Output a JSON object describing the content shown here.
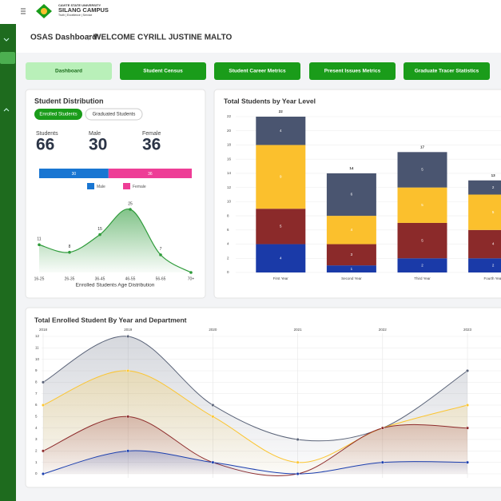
{
  "header": {
    "university": "CAVITE STATE UNIVERSITY",
    "campus": "SILANG CAMPUS",
    "motto": "Truth | Excellence | Service"
  },
  "breadcrumb": [
    "OSAS Dashboard",
    "WELCOME CYRILL JUSTINE MALTO"
  ],
  "nav": [
    "Dashboard",
    "Student Census",
    "Student Career Metrics",
    "Present Issues Metrics",
    "Graduate Tracer Statistics"
  ],
  "distribution": {
    "title": "Student Distribution",
    "tabs": [
      "Enrolled Students",
      "Graduated Students"
    ],
    "stats": [
      {
        "label": "Students",
        "value": 66
      },
      {
        "label": "Male",
        "value": 30
      },
      {
        "label": "Female",
        "value": 36
      }
    ]
  },
  "chart_data": [
    {
      "type": "stacked-hbar",
      "series": [
        {
          "name": "Male",
          "color": "#1976d2",
          "values": [
            30
          ]
        },
        {
          "name": "Female",
          "color": "#ee3d96",
          "values": [
            36
          ]
        }
      ]
    },
    {
      "type": "area",
      "categories": [
        "16-25",
        "26-35",
        "36-45",
        "46-55",
        "56-65",
        "70+"
      ],
      "values": [
        11,
        8,
        15,
        25,
        7,
        0
      ],
      "color": "#2e9b3a",
      "xlabel": "Enrolled Students Age Distribution"
    },
    {
      "type": "stacked-bar",
      "title": "Total Students by Year Level",
      "categories": [
        "First Year",
        "Second Year",
        "Third Year",
        "Fourth Year"
      ],
      "series": [
        {
          "color": "#1a3aa8",
          "values": [
            4,
            1,
            2,
            2
          ]
        },
        {
          "color": "#8b2a2a",
          "values": [
            5,
            3,
            5,
            4
          ]
        },
        {
          "color": "#fbc02d",
          "values": [
            9,
            4,
            5,
            5
          ]
        },
        {
          "color": "#4a5570",
          "values": [
            4,
            6,
            5,
            2
          ]
        }
      ],
      "totals": [
        22,
        14,
        17,
        13
      ],
      "ylim": [
        0,
        22
      ],
      "yticks": [
        0,
        2,
        4,
        6,
        8,
        10,
        12,
        14,
        16,
        18,
        20,
        22
      ],
      "grid": true
    },
    {
      "type": "line",
      "title": "Total Enrolled Student By Year and Department",
      "categories": [
        "2018",
        "2019",
        "2020",
        "2021",
        "2022",
        "2023"
      ],
      "series": [
        {
          "color": "#5a6378",
          "values": [
            8,
            12,
            6,
            3,
            4,
            9
          ]
        },
        {
          "color": "#fbc531",
          "values": [
            6,
            9,
            5,
            1,
            4,
            6
          ]
        },
        {
          "color": "#8e2c2c",
          "values": [
            2,
            5,
            1,
            0,
            4,
            4
          ]
        },
        {
          "color": "#1c3fae",
          "values": [
            0,
            2,
            1,
            0,
            1,
            1
          ]
        }
      ],
      "ylim": [
        0,
        12
      ],
      "yticks": [
        0,
        1,
        2,
        3,
        4,
        5,
        6,
        7,
        8,
        9,
        10,
        11,
        12
      ],
      "grid": true
    }
  ]
}
